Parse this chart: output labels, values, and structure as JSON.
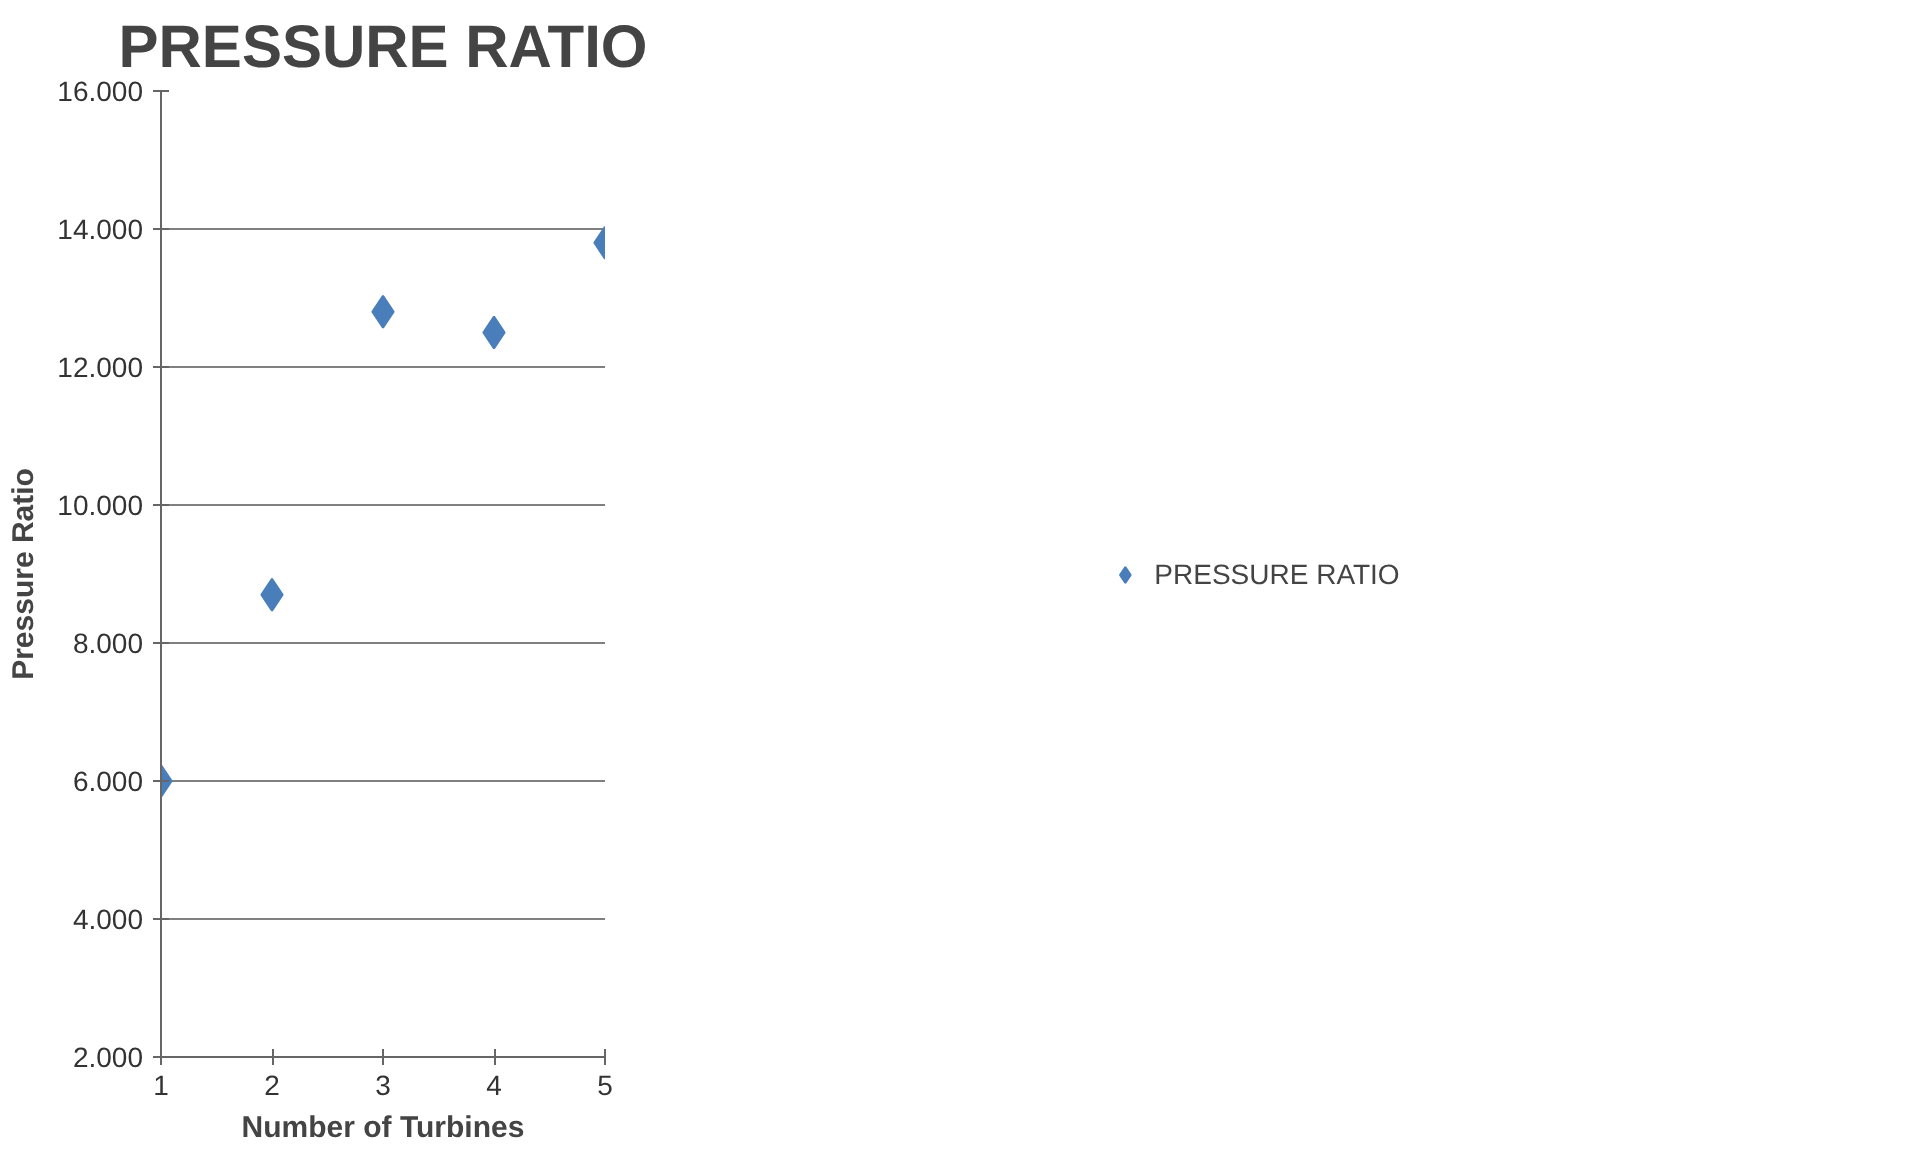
{
  "chart_data": {
    "type": "scatter",
    "title": "PRESSURE RATIO",
    "xlabel": "Number of Turbines",
    "ylabel": "Pressure Ratio",
    "x": [
      1,
      2,
      3,
      4,
      5
    ],
    "series": [
      {
        "name": "PRESSURE RATIO",
        "color": "#4a7ebb",
        "values": [
          6.0,
          8.7,
          12.8,
          12.5,
          13.8
        ]
      }
    ],
    "xlim": [
      1,
      5
    ],
    "xticks": [
      1,
      2,
      3,
      4,
      5
    ],
    "ylim": [
      2,
      16
    ],
    "yticks": [
      {
        "value": 2,
        "label": "2.000"
      },
      {
        "value": 4,
        "label": "4.000"
      },
      {
        "value": 6,
        "label": "6.000"
      },
      {
        "value": 8,
        "label": "8.000"
      },
      {
        "value": 10,
        "label": "10.000"
      },
      {
        "value": 12,
        "label": "12.000"
      },
      {
        "value": 14,
        "label": "14.000"
      },
      {
        "value": 16,
        "label": "16.000"
      }
    ],
    "grid": "y",
    "legend": "right",
    "marker": "diamond"
  }
}
